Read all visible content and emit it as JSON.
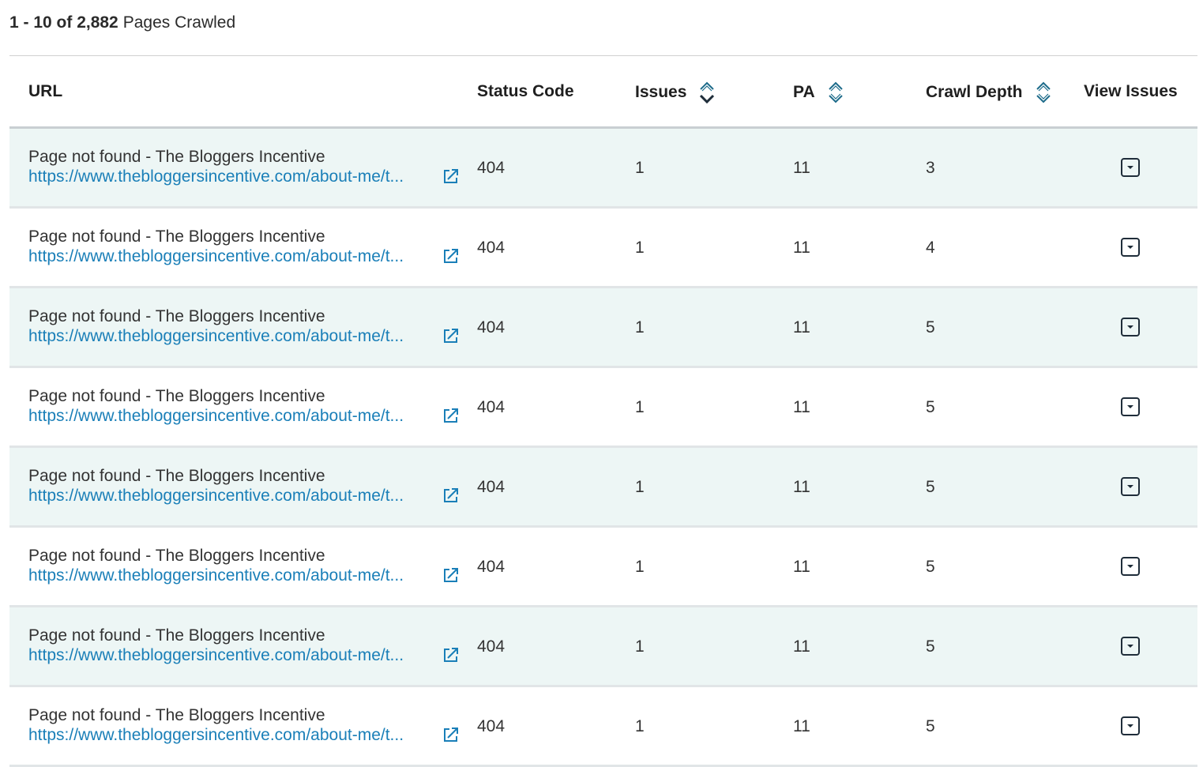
{
  "summary": {
    "range": "1 - 10 of 2,882",
    "label": "Pages Crawled"
  },
  "columns": {
    "url": "URL",
    "status_code": "Status Code",
    "issues": "Issues",
    "pa": "PA",
    "crawl_depth": "Crawl Depth",
    "view_issues": "View Issues"
  },
  "icons": {
    "sort": "sort-icon",
    "external_link": "external-link-icon",
    "view_issues": "dropdown-chevron-icon"
  },
  "colors": {
    "link": "#1a7fb8",
    "row_alt_bg": "#edf6f5",
    "accent": "#1d6b8a"
  },
  "rows": [
    {
      "title": "Page not found - The Bloggers Incentive",
      "url": "https://www.thebloggersincentive.com/about-me/t...",
      "status_code": "404",
      "issues": "1",
      "pa": "11",
      "crawl_depth": "3"
    },
    {
      "title": "Page not found - The Bloggers Incentive",
      "url": "https://www.thebloggersincentive.com/about-me/t...",
      "status_code": "404",
      "issues": "1",
      "pa": "11",
      "crawl_depth": "4"
    },
    {
      "title": "Page not found - The Bloggers Incentive",
      "url": "https://www.thebloggersincentive.com/about-me/t...",
      "status_code": "404",
      "issues": "1",
      "pa": "11",
      "crawl_depth": "5"
    },
    {
      "title": "Page not found - The Bloggers Incentive",
      "url": "https://www.thebloggersincentive.com/about-me/t...",
      "status_code": "404",
      "issues": "1",
      "pa": "11",
      "crawl_depth": "5"
    },
    {
      "title": "Page not found - The Bloggers Incentive",
      "url": "https://www.thebloggersincentive.com/about-me/t...",
      "status_code": "404",
      "issues": "1",
      "pa": "11",
      "crawl_depth": "5"
    },
    {
      "title": "Page not found - The Bloggers Incentive",
      "url": "https://www.thebloggersincentive.com/about-me/t...",
      "status_code": "404",
      "issues": "1",
      "pa": "11",
      "crawl_depth": "5"
    },
    {
      "title": "Page not found - The Bloggers Incentive",
      "url": "https://www.thebloggersincentive.com/about-me/t...",
      "status_code": "404",
      "issues": "1",
      "pa": "11",
      "crawl_depth": "5"
    },
    {
      "title": "Page not found - The Bloggers Incentive",
      "url": "https://www.thebloggersincentive.com/about-me/t...",
      "status_code": "404",
      "issues": "1",
      "pa": "11",
      "crawl_depth": "5"
    }
  ]
}
